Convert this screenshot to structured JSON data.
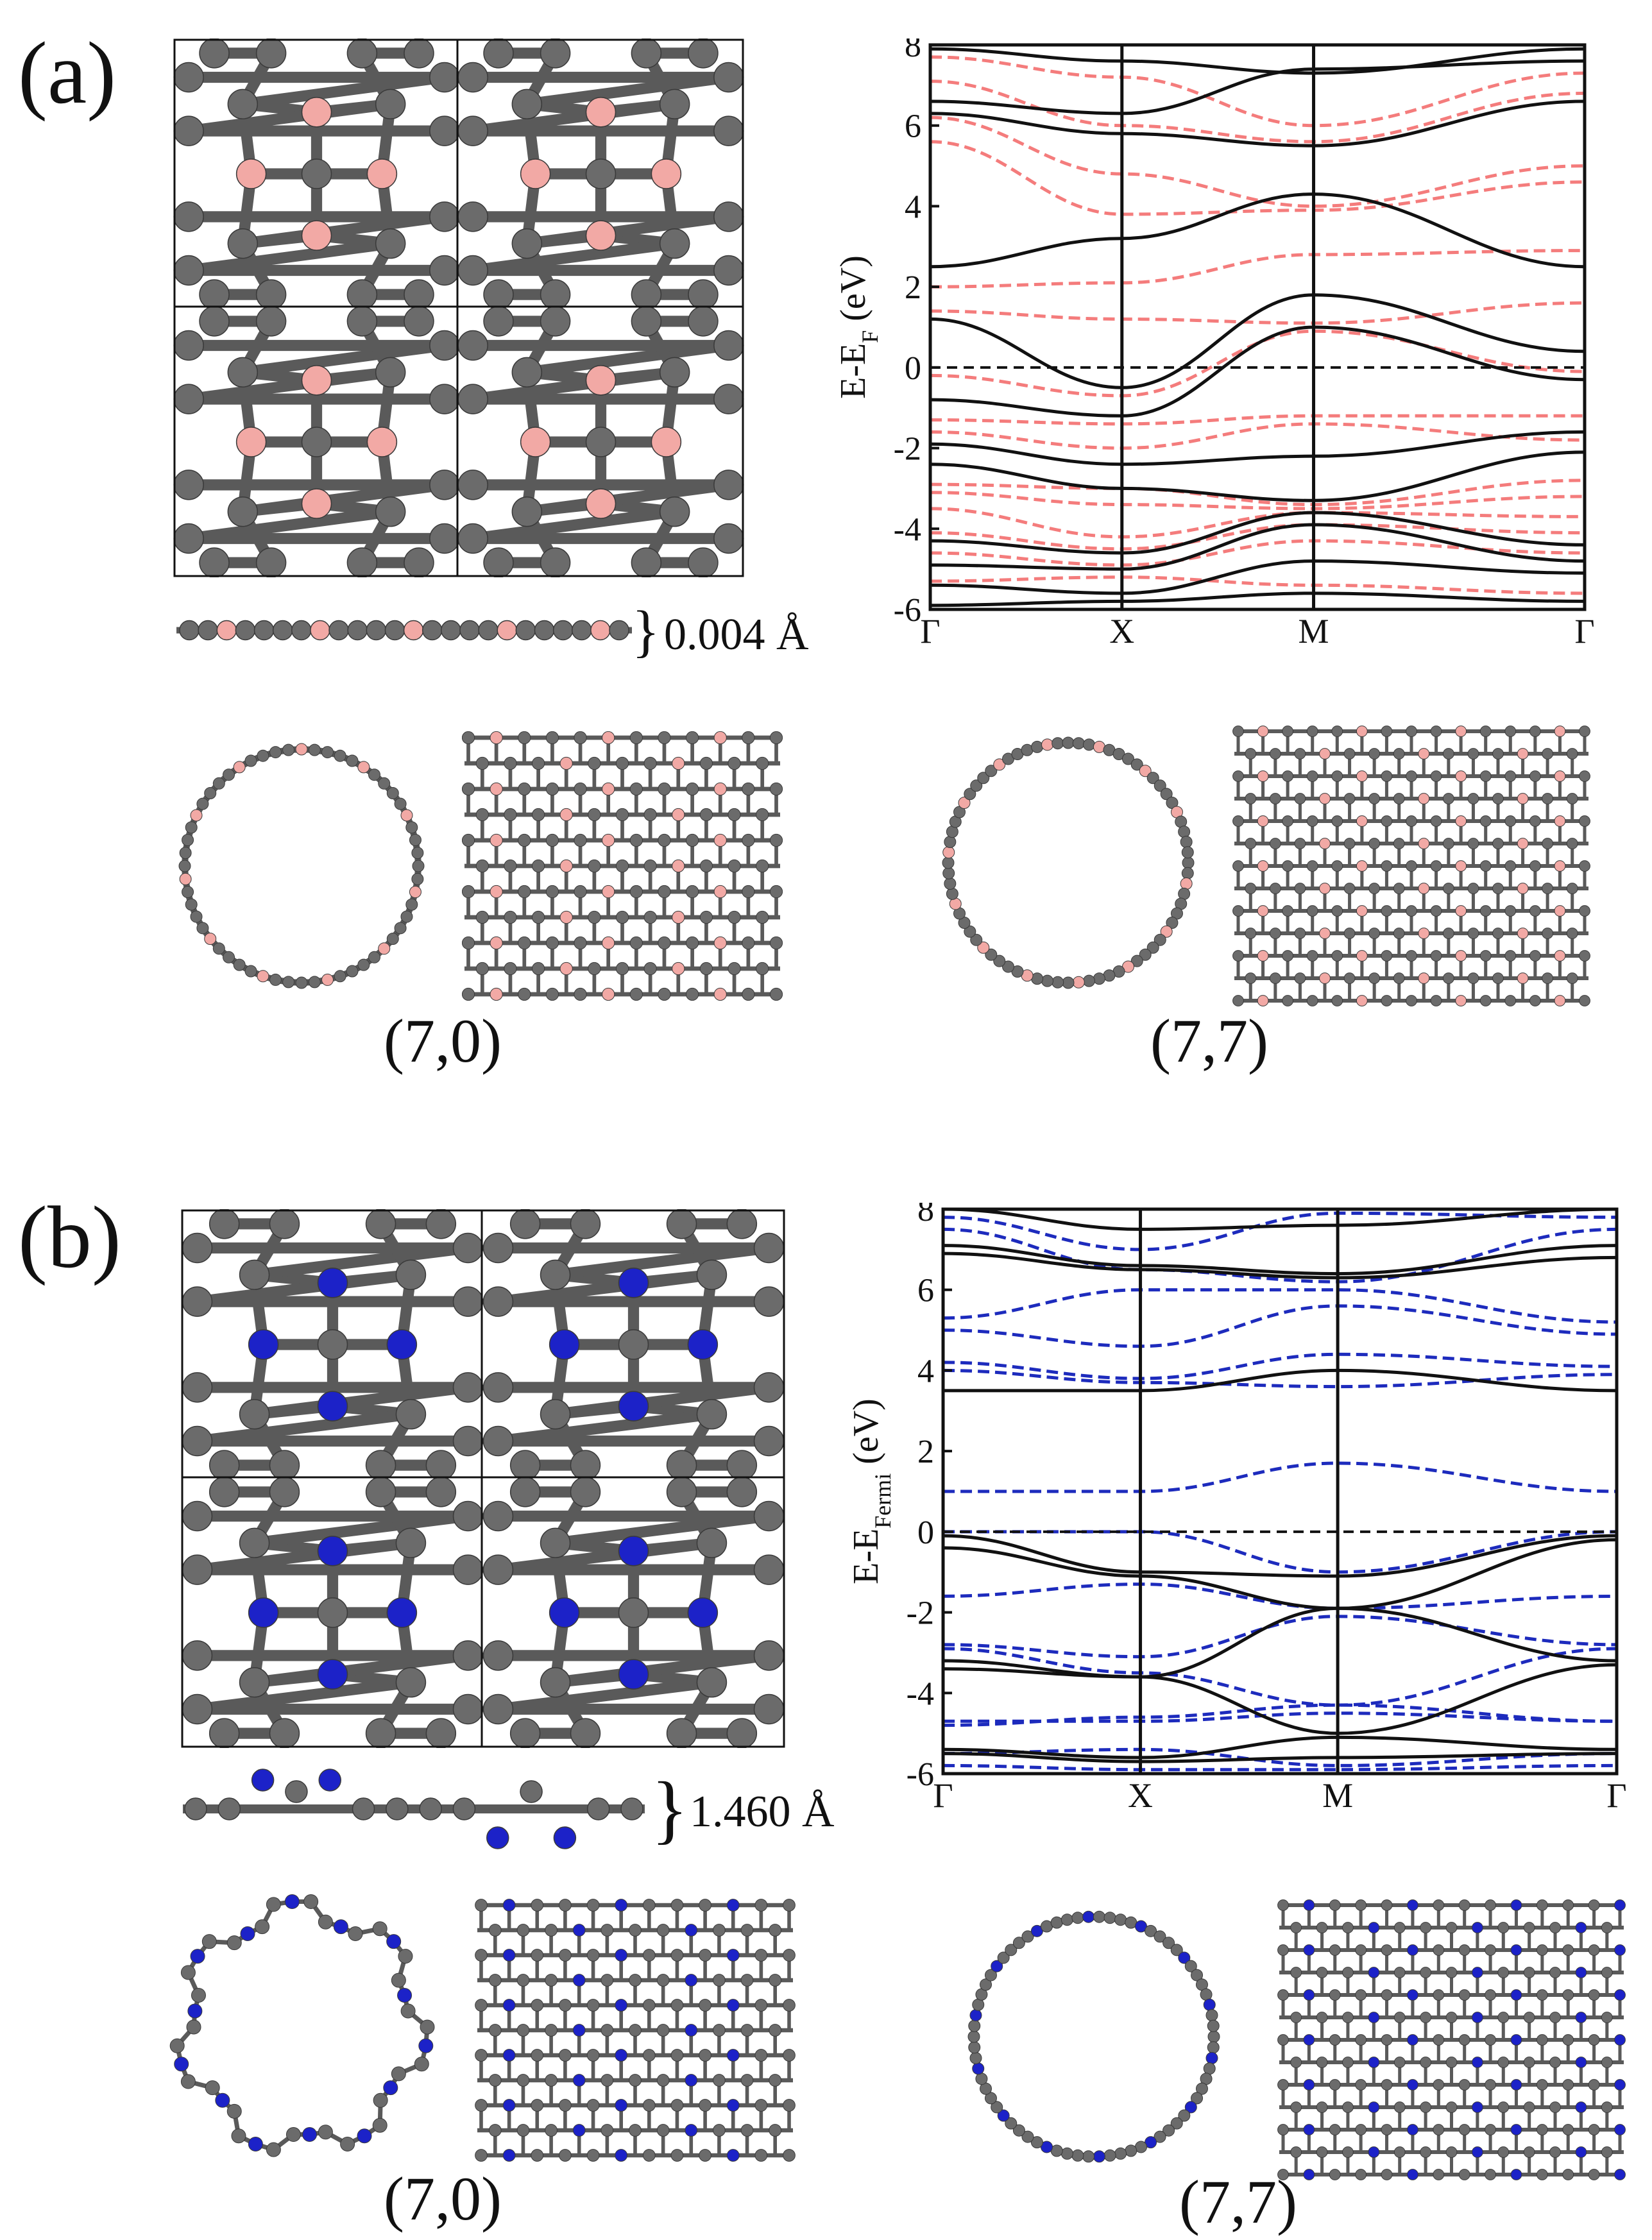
{
  "panels": [
    {
      "label": "(a)",
      "height_label": "0.004 Å",
      "tubes": [
        "(7,0)",
        "(7,7)"
      ],
      "atom_color": "#f2a9a5",
      "band_color": "#f47c7c",
      "chart_data": {
        "type": "line",
        "ylabel": "E-E_F (eV)",
        "ylabel_main": "E-E",
        "ylabel_sub": "F",
        "ylabel_unit": "(eV)",
        "ylim": [
          -6,
          8
        ],
        "yticks": [
          "8",
          "6",
          "4",
          "2",
          "0",
          "-2",
          "-4",
          "-6"
        ],
        "kpoints": [
          "Γ",
          "X",
          "M",
          "Γ"
        ],
        "kpos": [
          0,
          1,
          2,
          3.414
        ],
        "fermi_level": 0,
        "series": [
          {
            "style": "solid",
            "values": [
              [
                7.9,
                7.6,
                7.3,
                7.9
              ],
              [
                6.6,
                6.3,
                7.4,
                7.6
              ],
              [
                6.3,
                5.8,
                5.5,
                6.6
              ],
              [
                2.5,
                3.2,
                4.3,
                2.5
              ],
              [
                1.2,
                -0.5,
                1.8,
                0.4
              ],
              [
                -0.8,
                -1.2,
                1.0,
                -0.3
              ],
              [
                -1.9,
                -2.4,
                -2.2,
                -1.6
              ],
              [
                -2.4,
                -3.0,
                -3.3,
                -2.1
              ],
              [
                -4.3,
                -4.6,
                -3.6,
                -4.4
              ],
              [
                -4.9,
                -5.0,
                -3.9,
                -4.8
              ],
              [
                -5.4,
                -5.6,
                -4.8,
                -5.1
              ],
              [
                -5.9,
                -5.8,
                -5.6,
                -5.8
              ]
            ]
          },
          {
            "style": "dashed",
            "values": [
              [
                7.7,
                7.2,
                6.0,
                7.3
              ],
              [
                7.1,
                6.0,
                5.6,
                6.8
              ],
              [
                6.2,
                4.8,
                4.0,
                5.0
              ],
              [
                5.6,
                3.8,
                3.9,
                4.6
              ],
              [
                2.0,
                2.1,
                2.8,
                2.9
              ],
              [
                1.4,
                1.2,
                1.1,
                1.6
              ],
              [
                -0.2,
                -0.7,
                0.9,
                -0.1
              ],
              [
                -1.3,
                -1.4,
                -1.2,
                -1.2
              ],
              [
                -1.6,
                -2.0,
                -1.4,
                -1.8
              ],
              [
                -2.9,
                -3.0,
                -3.4,
                -2.8
              ],
              [
                -3.1,
                -3.4,
                -3.5,
                -3.2
              ],
              [
                -3.5,
                -4.2,
                -3.6,
                -3.7
              ],
              [
                -4.1,
                -4.5,
                -3.9,
                -4.1
              ],
              [
                -4.6,
                -4.9,
                -4.3,
                -4.6
              ],
              [
                -5.3,
                -5.2,
                -5.4,
                -5.6
              ]
            ]
          }
        ]
      }
    },
    {
      "label": "(b)",
      "height_label": "1.460 Å",
      "tubes": [
        "(7,0)",
        "(7,7)"
      ],
      "atom_color": "#1c22c8",
      "band_color": "#1d2bbd",
      "chart_data": {
        "type": "line",
        "ylabel": "E-E_Fermi (eV)",
        "ylabel_main": "E-E",
        "ylabel_sub": "Fermi",
        "ylabel_unit": "(eV)",
        "ylim": [
          -6,
          8
        ],
        "yticks": [
          "8",
          "6",
          "4",
          "2",
          "0",
          "-2",
          "-4",
          "-6"
        ],
        "kpoints": [
          "Γ",
          "X",
          "M",
          "Γ"
        ],
        "kpos": [
          0,
          1,
          2,
          3.414
        ],
        "fermi_level": 0,
        "series": [
          {
            "style": "solid",
            "values": [
              [
                8.0,
                7.5,
                7.6,
                8.0
              ],
              [
                7.1,
                6.6,
                6.4,
                7.1
              ],
              [
                6.9,
                6.5,
                6.3,
                6.8
              ],
              [
                3.5,
                3.5,
                4.0,
                3.5
              ],
              [
                -0.1,
                -1.0,
                -1.1,
                -0.1
              ],
              [
                -0.4,
                -1.1,
                -1.9,
                -0.2
              ],
              [
                -3.2,
                -3.6,
                -1.9,
                -3.2
              ],
              [
                -3.4,
                -3.6,
                -5.0,
                -3.3
              ],
              [
                -5.4,
                -5.6,
                -5.1,
                -5.4
              ],
              [
                -5.5,
                -5.7,
                -5.6,
                -5.5
              ]
            ]
          },
          {
            "style": "dashed",
            "values": [
              [
                7.8,
                7.0,
                7.9,
                7.8
              ],
              [
                7.5,
                6.5,
                6.2,
                7.5
              ],
              [
                5.3,
                6.0,
                6.0,
                5.2
              ],
              [
                5.0,
                4.6,
                5.6,
                4.9
              ],
              [
                4.2,
                3.8,
                4.4,
                4.1
              ],
              [
                4.0,
                3.7,
                3.6,
                3.9
              ],
              [
                1.0,
                1.0,
                1.7,
                1.0
              ],
              [
                0.0,
                0.0,
                -1.0,
                0.0
              ],
              [
                -1.6,
                -1.3,
                -1.9,
                -1.6
              ],
              [
                -2.8,
                -3.1,
                -2.1,
                -2.8
              ],
              [
                -2.9,
                -3.5,
                -4.3,
                -2.9
              ],
              [
                -4.7,
                -4.7,
                -4.5,
                -4.7
              ],
              [
                -4.8,
                -4.6,
                -4.3,
                -4.7
              ],
              [
                -5.5,
                -5.4,
                -5.8,
                -5.5
              ],
              [
                -5.8,
                -5.9,
                -5.9,
                -5.8
              ]
            ]
          }
        ]
      }
    }
  ]
}
